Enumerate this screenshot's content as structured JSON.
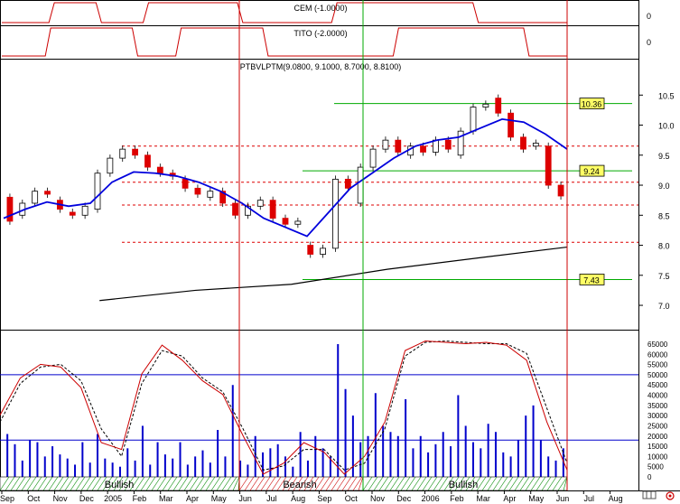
{
  "chart_data": [
    {
      "type": "line",
      "title": "CEM (-1.0000)",
      "y_ticks": [
        "0"
      ],
      "states": [
        0,
        1,
        0,
        1,
        1,
        0,
        0,
        1,
        1,
        1,
        0,
        0
      ],
      "color": "#cc0000"
    },
    {
      "type": "line",
      "title": "TITO (-2.0000)",
      "y_ticks": [
        "0"
      ],
      "states": [
        0,
        1,
        1,
        0,
        1,
        1,
        0,
        0,
        0,
        1,
        1,
        1,
        0
      ],
      "color": "#cc0000"
    },
    {
      "type": "candlestick",
      "title": "PTBVLPTM(9.0800, 9.1000, 8.7000, 8.8100)",
      "ylim": [
        6.7,
        10.85
      ],
      "y_ticks": [
        "10.5",
        "10.0",
        "9.5",
        "9.0",
        "8.5",
        "8.0",
        "7.5",
        "7.0"
      ],
      "y_tick_values": [
        10.5,
        10.0,
        9.5,
        9.0,
        8.5,
        8.0,
        7.5,
        7.0
      ],
      "labels": [
        {
          "text": "10.36",
          "value": 10.36
        },
        {
          "text": "9.24",
          "value": 9.24
        },
        {
          "text": "7.43",
          "value": 7.43
        }
      ],
      "support_lines": [
        10.36,
        9.24,
        7.43
      ],
      "dashed_levels": [
        9.65,
        9.05,
        8.67,
        8.05
      ],
      "long_ma": [
        [
          8,
          7.08
        ],
        [
          16,
          7.25
        ],
        [
          24,
          7.35
        ],
        [
          32,
          7.6
        ],
        [
          40,
          7.8
        ],
        [
          47,
          7.97
        ]
      ],
      "short_ma": [
        8.45,
        8.6,
        8.72,
        8.65,
        8.7,
        9.05,
        9.22,
        9.2,
        9.15,
        9.05,
        8.9,
        8.7,
        8.45,
        8.3,
        8.15,
        8.55,
        8.95,
        9.2,
        9.45,
        9.65,
        9.75,
        9.8,
        9.95,
        10.1,
        10.05,
        9.85,
        9.6
      ],
      "candles": [
        [
          8.8,
          8.4
        ],
        [
          8.5,
          8.7
        ],
        [
          8.7,
          8.9
        ],
        [
          8.9,
          8.85
        ],
        [
          8.75,
          8.6
        ],
        [
          8.55,
          8.5
        ],
        [
          8.5,
          8.65
        ],
        [
          8.6,
          9.2
        ],
        [
          9.2,
          9.45
        ],
        [
          9.45,
          9.6
        ],
        [
          9.6,
          9.5
        ],
        [
          9.5,
          9.3
        ],
        [
          9.3,
          9.2
        ],
        [
          9.2,
          9.15
        ],
        [
          9.1,
          8.95
        ],
        [
          8.95,
          8.85
        ],
        [
          8.8,
          8.9
        ],
        [
          8.9,
          8.7
        ],
        [
          8.7,
          8.5
        ],
        [
          8.5,
          8.65
        ],
        [
          8.65,
          8.75
        ],
        [
          8.75,
          8.45
        ],
        [
          8.45,
          8.35
        ],
        [
          8.35,
          8.4
        ],
        [
          8.0,
          7.85
        ],
        [
          7.85,
          7.95
        ],
        [
          7.95,
          9.1
        ],
        [
          9.1,
          8.95
        ],
        [
          8.7,
          9.3
        ],
        [
          9.3,
          9.6
        ],
        [
          9.6,
          9.75
        ],
        [
          9.75,
          9.55
        ],
        [
          9.5,
          9.65
        ],
        [
          9.65,
          9.55
        ],
        [
          9.55,
          9.75
        ],
        [
          9.75,
          9.6
        ],
        [
          9.5,
          9.9
        ],
        [
          9.9,
          10.3
        ],
        [
          10.3,
          10.35
        ],
        [
          10.45,
          10.2
        ],
        [
          10.2,
          9.8
        ],
        [
          9.8,
          9.6
        ],
        [
          9.65,
          9.7
        ],
        [
          9.65,
          9.0
        ],
        [
          9.0,
          8.82
        ]
      ],
      "candle_color_up": "#ffffff",
      "candle_color_down": "#dd0000",
      "short_ma_color": "#0000dd",
      "long_ma_color": "#000000"
    },
    {
      "type": "bar",
      "title": "",
      "y_ticks": [
        "65000",
        "60000",
        "55000",
        "50000",
        "45000",
        "40000",
        "35000",
        "30000",
        "25000",
        "20000",
        "15000",
        "10000",
        "5000",
        "0"
      ],
      "ylim": [
        0,
        65000
      ],
      "values": [
        21000,
        16000,
        8000,
        18000,
        17000,
        10000,
        15000,
        11000,
        9000,
        6000,
        17000,
        7000,
        21000,
        9000,
        7000,
        5000,
        14000,
        8000,
        25000,
        6000,
        17000,
        11000,
        9000,
        17000,
        6000,
        10000,
        13000,
        7000,
        23000,
        10000,
        45000,
        8000,
        6000,
        20000,
        12000,
        14000,
        16000,
        10000,
        5000,
        22000,
        8000,
        20000,
        14000,
        10000,
        65000,
        43000,
        30000,
        17000,
        20000,
        41000,
        25000,
        22000,
        20000,
        38000,
        14000,
        20000,
        12000,
        16000,
        22000,
        15000,
        40000,
        25000,
        17000,
        14000,
        26000,
        22000,
        12000,
        10000,
        18000,
        30000,
        35000,
        18000,
        10000,
        8000,
        14000
      ],
      "oscillator_red": [
        0.45,
        0.72,
        0.82,
        0.8,
        0.65,
        0.25,
        0.2,
        0.75,
        0.96,
        0.85,
        0.7,
        0.6,
        0.3,
        0.02,
        0.1,
        0.25,
        0.18,
        0.02,
        0.15,
        0.4,
        0.92,
        0.99,
        0.98,
        0.97,
        0.98,
        0.96,
        0.85,
        0.4,
        0.05
      ],
      "oscillator_black": [
        0.4,
        0.68,
        0.8,
        0.82,
        0.7,
        0.35,
        0.15,
        0.68,
        0.92,
        0.88,
        0.72,
        0.62,
        0.35,
        0.05,
        0.08,
        0.2,
        0.2,
        0.05,
        0.1,
        0.35,
        0.88,
        0.98,
        0.99,
        0.98,
        0.97,
        0.97,
        0.9,
        0.5,
        0.1
      ],
      "h_lines": [
        50000,
        18000
      ]
    }
  ],
  "regime_labels": [
    "Bullish",
    "Bearish",
    "Bullish"
  ],
  "x_axis": {
    "labels": [
      "Sep",
      "Oct",
      "Nov",
      "Dec",
      "2005",
      "Feb",
      "Mar",
      "Apr",
      "May",
      "Jun",
      "Jul",
      "Aug",
      "Sep",
      "Oct",
      "Nov",
      "Dec",
      "2006",
      "Feb",
      "Mar",
      "Apr",
      "May",
      "Jun",
      "Jul",
      "Aug"
    ]
  },
  "icons": {
    "corner": "sigma-icon",
    "grid": "mini-grid-icon"
  }
}
